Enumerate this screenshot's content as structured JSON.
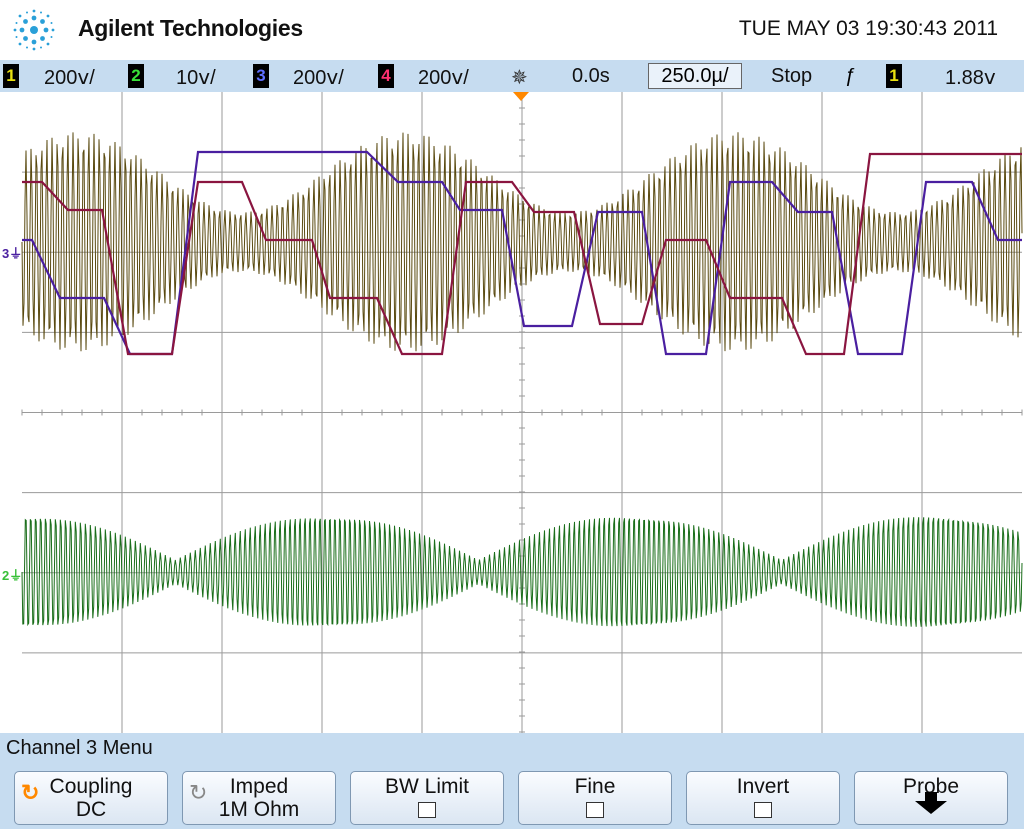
{
  "header": {
    "brand": "Agilent Technologies",
    "datetime": "TUE MAY 03 19:30:43 2011"
  },
  "status": {
    "ch1": {
      "num": "1",
      "scale": "200ⅴ/"
    },
    "ch2": {
      "num": "2",
      "scale": "10ⅴ/"
    },
    "ch3": {
      "num": "3",
      "scale": "200ⅴ/"
    },
    "ch4": {
      "num": "4",
      "scale": "200ⅴ/"
    },
    "delay": "0.0s",
    "timebase": "250.0µ/",
    "run_state": "Stop",
    "trigger_source": "1",
    "trigger_level": "1.88ⅴ"
  },
  "colors": {
    "ch1": "#5a4a10",
    "ch2": "#1a6e1a",
    "ch3": "#4a1fa0",
    "ch4": "#8a1540",
    "grid": "#9a9a9a"
  },
  "menu": {
    "title": "Channel 3  Menu",
    "softkeys": [
      {
        "label": "Coupling",
        "value": "DC"
      },
      {
        "label": "Imped",
        "value": "1M Ohm"
      },
      {
        "label": "BW Limit"
      },
      {
        "label": "Fine"
      },
      {
        "label": "Invert"
      },
      {
        "label": "Probe"
      }
    ]
  },
  "markers": {
    "ch3_gnd": "3",
    "ch2_gnd": "2"
  }
}
